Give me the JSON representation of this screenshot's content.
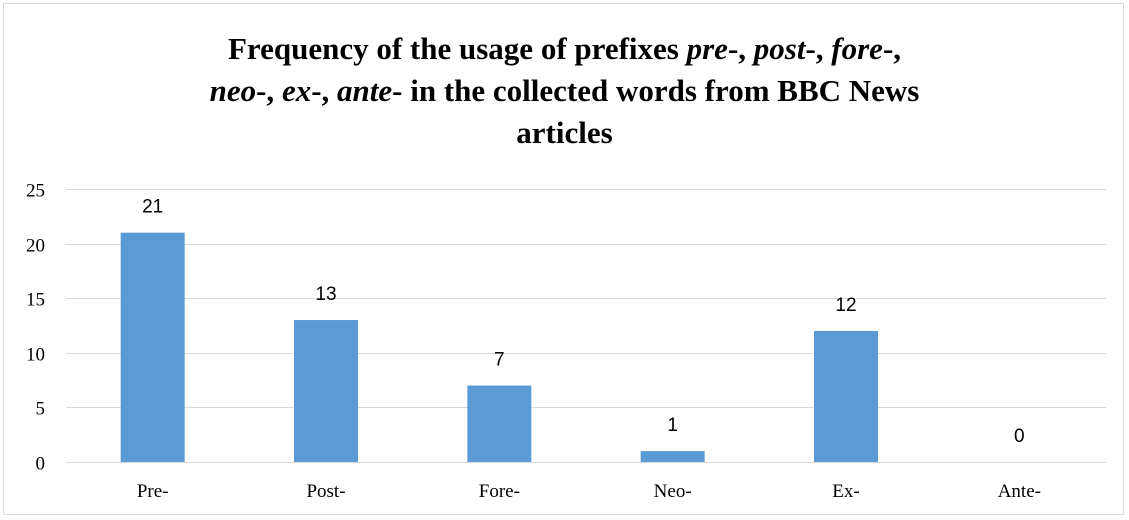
{
  "chart_data": {
    "type": "bar",
    "title": "Frequency of the usage of prefixes pre-, post-, fore-, neo-, ex-, ante- in the collected words from BBC News articles",
    "title_parts": [
      [
        {
          "text": "Frequency of the usage of prefixes ",
          "italic": false
        },
        {
          "text": "pre",
          "italic": true
        },
        {
          "text": "-, ",
          "italic": false
        },
        {
          "text": "post",
          "italic": true
        },
        {
          "text": "-, ",
          "italic": false
        },
        {
          "text": "fore",
          "italic": true
        },
        {
          "text": "-,",
          "italic": false
        }
      ],
      [
        {
          "text": "neo",
          "italic": true
        },
        {
          "text": "-, ",
          "italic": false
        },
        {
          "text": "ex",
          "italic": true
        },
        {
          "text": "-, ",
          "italic": false
        },
        {
          "text": "ante",
          "italic": true
        },
        {
          "text": "- in the collected words from BBC News",
          "italic": false
        }
      ],
      [
        {
          "text": "articles",
          "italic": false
        }
      ]
    ],
    "categories": [
      "Pre-",
      "Post-",
      "Fore-",
      "Neo-",
      "Ex-",
      "Ante-"
    ],
    "values": [
      21,
      13,
      7,
      1,
      12,
      0
    ],
    "data_labels": [
      "21",
      "13",
      "7",
      "1",
      "12",
      "0"
    ],
    "xlabel": "",
    "ylabel": "",
    "ylim": [
      0,
      25
    ],
    "yticks": [
      0,
      5,
      10,
      15,
      20,
      25
    ],
    "grid": true,
    "legend": "none",
    "bar_color": "#5b9bd5",
    "grid_color": "#d9d9d9"
  }
}
